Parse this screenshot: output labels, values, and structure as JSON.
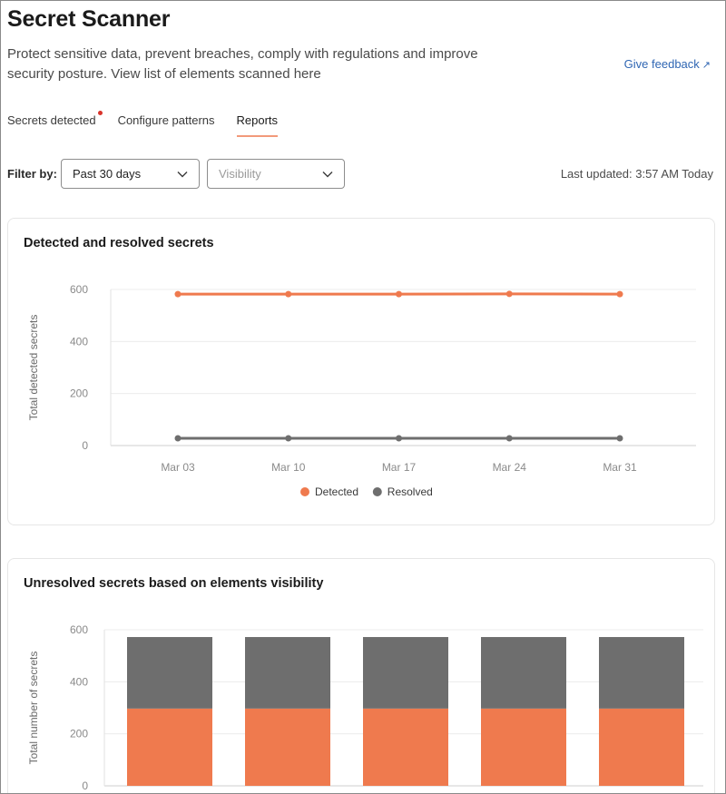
{
  "header": {
    "title": "Secret Scanner",
    "description": "Protect sensitive data, prevent breaches, comply with regulations and improve security posture. View list of elements scanned here",
    "feedback_label": "Give feedback",
    "feedback_arrow": "↗"
  },
  "tabs": [
    {
      "label": "Secrets detected",
      "active": false,
      "notification": true
    },
    {
      "label": "Configure patterns",
      "active": false
    },
    {
      "label": "Reports",
      "active": true
    }
  ],
  "filters": {
    "label": "Filter by:",
    "period": {
      "value": "Past 30 days"
    },
    "visibility": {
      "placeholder": "Visibility"
    },
    "last_updated": "Last updated: 3:57 AM Today"
  },
  "colors": {
    "detected": "#ef7a4e",
    "resolved": "#6e6e6e",
    "accent": "#2f66b3"
  },
  "icons": {
    "select_chevron": "chevron-down-icon",
    "external_link": "arrow-up-right-icon"
  },
  "chart_data": [
    {
      "type": "line",
      "title": "Detected and resolved secrets",
      "ylabel": "Total detected secrets",
      "xlabel": "",
      "x": [
        "Mar 03",
        "Mar 10",
        "Mar 17",
        "Mar 24",
        "Mar 31"
      ],
      "ylim": [
        0,
        600
      ],
      "yticks": [
        0,
        200,
        400,
        600
      ],
      "grid": true,
      "legend": "bottom-center",
      "series": [
        {
          "name": "Detected",
          "values": [
            582,
            582,
            582,
            583,
            582
          ],
          "color": "#ef7a4e"
        },
        {
          "name": "Resolved",
          "values": [
            28,
            28,
            28,
            28,
            28
          ],
          "color": "#6e6e6e"
        }
      ]
    },
    {
      "type": "bar",
      "stacked": true,
      "title": "Unresolved secrets based on elements visibility",
      "ylabel": "Total number of secrets",
      "xlabel": "",
      "categories": [
        "",
        "",
        "",
        "",
        ""
      ],
      "ylim": [
        0,
        600
      ],
      "yticks": [
        0,
        200,
        400,
        600
      ],
      "grid": true,
      "series": [
        {
          "values": [
            297,
            297,
            297,
            297,
            297
          ],
          "color": "#ef7a4e"
        },
        {
          "values": [
            275,
            275,
            275,
            275,
            275
          ],
          "color": "#6e6e6e"
        }
      ]
    }
  ]
}
